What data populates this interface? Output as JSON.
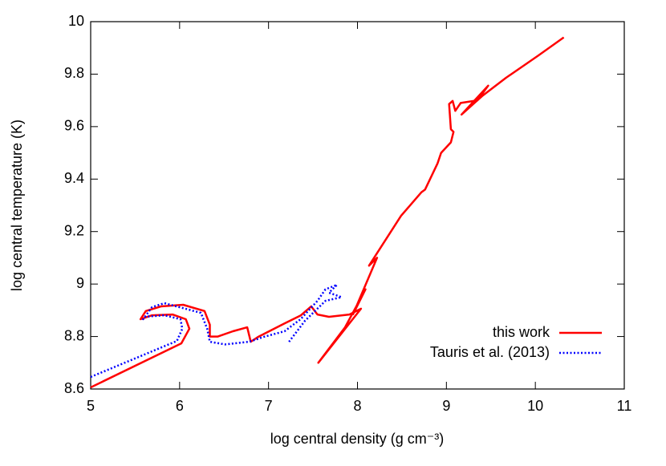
{
  "chart_data": {
    "type": "line",
    "x_label": "log central density (g cm⁻³)",
    "y_label": "log central temperature (K)",
    "xlim": [
      5,
      11
    ],
    "ylim": [
      8.6,
      10
    ],
    "xticks": [
      5,
      6,
      7,
      8,
      9,
      10,
      11
    ],
    "yticks": [
      8.6,
      8.8,
      9,
      9.2,
      9.4,
      9.6,
      9.8,
      10
    ],
    "legend": "bottom-right",
    "series": [
      {
        "name": "this work",
        "color": "#ff0000",
        "style": "solid",
        "x": [
          5.0,
          6.02,
          6.11,
          6.07,
          5.92,
          5.69,
          5.56,
          5.62,
          5.79,
          6.04,
          6.28,
          6.34,
          6.34,
          6.43,
          6.6,
          6.76,
          6.8,
          6.89,
          7.18,
          7.36,
          7.48,
          7.55,
          7.68,
          7.91,
          8.04,
          7.56,
          7.86,
          8.09,
          7.95,
          8.22,
          8.13,
          8.49,
          8.72,
          8.76,
          8.9,
          8.94,
          9.05,
          9.08,
          9.05,
          9.03,
          9.07,
          9.1,
          9.16,
          9.35,
          9.47,
          9.17,
          9.4,
          9.67,
          10.03,
          10.32
        ],
        "values": [
          8.606,
          8.774,
          8.83,
          8.866,
          8.884,
          8.881,
          8.866,
          8.897,
          8.915,
          8.921,
          8.897,
          8.845,
          8.8,
          8.8,
          8.82,
          8.835,
          8.78,
          8.8,
          8.85,
          8.88,
          8.915,
          8.884,
          8.875,
          8.884,
          8.906,
          8.7,
          8.835,
          8.98,
          8.885,
          9.1,
          9.07,
          9.26,
          9.35,
          9.36,
          9.46,
          9.5,
          9.54,
          9.58,
          9.59,
          9.686,
          9.698,
          9.66,
          9.69,
          9.7,
          9.756,
          9.646,
          9.716,
          9.786,
          9.87,
          9.94
        ]
      },
      {
        "name": "Tauris et al. (2013)",
        "color": "#0000ff",
        "style": "dotted",
        "x": [
          5.0,
          5.97,
          6.03,
          6.01,
          5.83,
          5.6,
          5.59,
          5.69,
          5.83,
          6.24,
          6.31,
          6.34,
          6.51,
          6.78,
          6.96,
          7.18,
          7.36,
          7.55,
          7.64,
          7.77,
          7.68,
          7.82,
          7.64,
          7.41,
          7.23
        ],
        "values": [
          8.646,
          8.783,
          8.83,
          8.866,
          8.881,
          8.875,
          8.866,
          8.912,
          8.927,
          8.89,
          8.83,
          8.78,
          8.77,
          8.78,
          8.8,
          8.82,
          8.866,
          8.936,
          8.98,
          8.997,
          8.967,
          8.95,
          8.936,
          8.86,
          8.78
        ]
      }
    ]
  }
}
